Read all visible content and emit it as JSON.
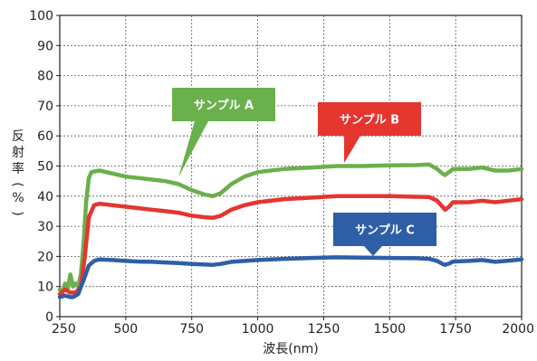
{
  "chart_data": {
    "type": "line",
    "title": "",
    "xlabel": "波長(nm)",
    "ylabel": "反射率(%)",
    "xlim": [
      250,
      2000
    ],
    "ylim": [
      0,
      100
    ],
    "x_ticks": [
      250,
      500,
      750,
      1000,
      1250,
      1500,
      1750,
      2000
    ],
    "x_tick_labels": [
      "250",
      "500",
      "750",
      "1000",
      "1250",
      "1500",
      "1750",
      "2000"
    ],
    "y_ticks": [
      0,
      10,
      20,
      30,
      40,
      50,
      60,
      70,
      80,
      90,
      100
    ],
    "y_tick_labels": [
      "0",
      "10",
      "20",
      "30",
      "40",
      "50",
      "60",
      "70",
      "80",
      "90",
      "100"
    ],
    "grid": true,
    "series": [
      {
        "name": "サンプル A",
        "color": "#6ab04c",
        "points": [
          [
            250,
            9
          ],
          [
            260,
            8
          ],
          [
            270,
            11
          ],
          [
            280,
            9
          ],
          [
            290,
            14
          ],
          [
            300,
            10
          ],
          [
            310,
            11
          ],
          [
            320,
            10
          ],
          [
            330,
            14
          ],
          [
            340,
            24
          ],
          [
            350,
            38
          ],
          [
            360,
            46
          ],
          [
            370,
            48
          ],
          [
            400,
            48.5
          ],
          [
            450,
            47.5
          ],
          [
            500,
            46.5
          ],
          [
            550,
            46
          ],
          [
            600,
            45.5
          ],
          [
            650,
            45
          ],
          [
            700,
            44
          ],
          [
            750,
            42
          ],
          [
            800,
            40.5
          ],
          [
            830,
            40
          ],
          [
            860,
            41
          ],
          [
            900,
            44
          ],
          [
            950,
            46.5
          ],
          [
            1000,
            48
          ],
          [
            1100,
            49
          ],
          [
            1200,
            49.5
          ],
          [
            1300,
            50
          ],
          [
            1400,
            50
          ],
          [
            1500,
            50.2
          ],
          [
            1600,
            50.3
          ],
          [
            1650,
            50.5
          ],
          [
            1680,
            49
          ],
          [
            1700,
            47.5
          ],
          [
            1710,
            47
          ],
          [
            1725,
            48
          ],
          [
            1740,
            49
          ],
          [
            1800,
            49
          ],
          [
            1850,
            49.5
          ],
          [
            1900,
            48.5
          ],
          [
            1950,
            48.5
          ],
          [
            2000,
            49
          ]
        ]
      },
      {
        "name": "サンプル B",
        "color": "#e5352f",
        "points": [
          [
            250,
            7.5
          ],
          [
            270,
            9
          ],
          [
            290,
            8
          ],
          [
            310,
            8
          ],
          [
            330,
            10
          ],
          [
            345,
            20
          ],
          [
            360,
            33
          ],
          [
            380,
            37
          ],
          [
            400,
            37.5
          ],
          [
            450,
            37
          ],
          [
            500,
            36.5
          ],
          [
            550,
            36
          ],
          [
            600,
            35.5
          ],
          [
            650,
            35
          ],
          [
            700,
            34.5
          ],
          [
            750,
            33.5
          ],
          [
            800,
            33
          ],
          [
            830,
            32.8
          ],
          [
            860,
            33.5
          ],
          [
            900,
            35.5
          ],
          [
            950,
            37
          ],
          [
            1000,
            38
          ],
          [
            1100,
            39
          ],
          [
            1200,
            39.5
          ],
          [
            1300,
            40
          ],
          [
            1400,
            40
          ],
          [
            1500,
            40
          ],
          [
            1600,
            39.8
          ],
          [
            1650,
            39.7
          ],
          [
            1680,
            38.5
          ],
          [
            1700,
            36.5
          ],
          [
            1710,
            35.5
          ],
          [
            1725,
            36.5
          ],
          [
            1740,
            38
          ],
          [
            1800,
            38
          ],
          [
            1850,
            38.5
          ],
          [
            1900,
            38
          ],
          [
            1950,
            38.5
          ],
          [
            2000,
            39
          ]
        ]
      },
      {
        "name": "サンプル C",
        "color": "#2e5fa6",
        "points": [
          [
            250,
            6.5
          ],
          [
            270,
            7
          ],
          [
            290,
            6.5
          ],
          [
            300,
            6.5
          ],
          [
            320,
            7.5
          ],
          [
            340,
            12
          ],
          [
            360,
            17
          ],
          [
            380,
            18.5
          ],
          [
            400,
            19
          ],
          [
            450,
            18.8
          ],
          [
            500,
            18.5
          ],
          [
            550,
            18.3
          ],
          [
            600,
            18.2
          ],
          [
            650,
            18
          ],
          [
            700,
            17.8
          ],
          [
            750,
            17.5
          ],
          [
            800,
            17.3
          ],
          [
            830,
            17.2
          ],
          [
            860,
            17.5
          ],
          [
            900,
            18.2
          ],
          [
            1000,
            18.8
          ],
          [
            1100,
            19.2
          ],
          [
            1200,
            19.5
          ],
          [
            1300,
            19.7
          ],
          [
            1400,
            19.6
          ],
          [
            1500,
            19.5
          ],
          [
            1600,
            19.4
          ],
          [
            1650,
            19.2
          ],
          [
            1680,
            18.5
          ],
          [
            1700,
            17.5
          ],
          [
            1710,
            17.2
          ],
          [
            1725,
            17.6
          ],
          [
            1740,
            18.3
          ],
          [
            1800,
            18.5
          ],
          [
            1850,
            18.8
          ],
          [
            1900,
            18.2
          ],
          [
            1950,
            18.6
          ],
          [
            2000,
            19
          ]
        ]
      }
    ],
    "annotations": [
      {
        "text": "サンプル A",
        "series": 0,
        "box_color": "#6ab04c",
        "pointer_at": [
          720,
          45
        ]
      },
      {
        "text": "サンプル B",
        "series": 1,
        "box_color": "#e5352f",
        "pointer_at": [
          1370,
          41
        ]
      },
      {
        "text": "サンプル C",
        "series": 2,
        "box_color": "#2e5fa6",
        "pointer_at": [
          1430,
          20
        ]
      }
    ]
  }
}
